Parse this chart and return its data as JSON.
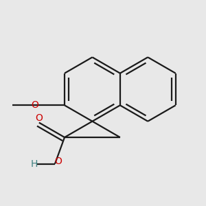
{
  "bg_color": "#e8e8e8",
  "bond_color": "#1a1a1a",
  "bond_lw": 1.6,
  "o_color": "#cc0000",
  "h_color": "#3d8080",
  "font_size": 10,
  "BL": 0.42,
  "fig_w": 3.0,
  "fig_h": 3.0,
  "dpi": 100,
  "xlim": [
    0.15,
    2.85
  ],
  "ylim": [
    0.35,
    2.85
  ],
  "double_off": 0.052,
  "double_shorten": 0.14
}
